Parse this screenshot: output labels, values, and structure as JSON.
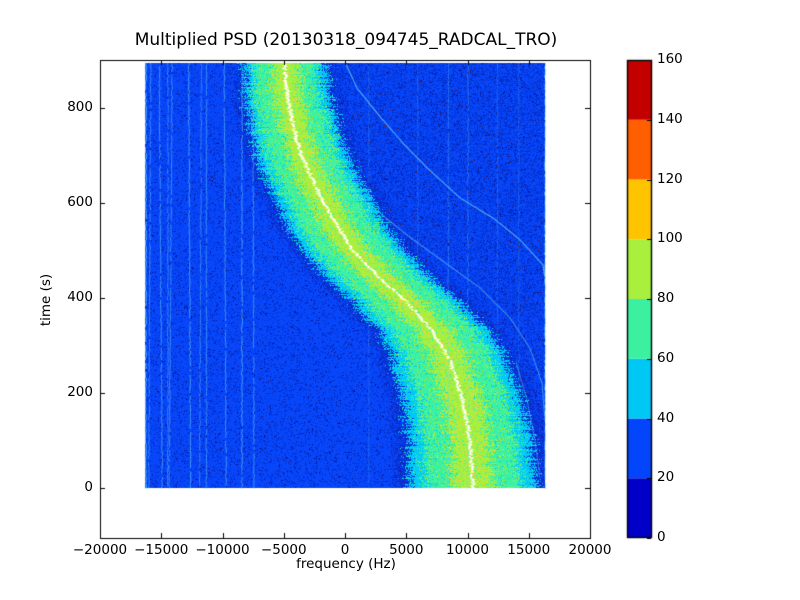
{
  "chart_data": {
    "type": "heatmap",
    "title": "Multiplied PSD (20130318_094745_RADCAL_TRO)",
    "xlabel": "frequency (Hz)",
    "ylabel": "time (s)",
    "xlim": [
      -20000,
      20000
    ],
    "ylim": [
      -105,
      900
    ],
    "grid": false,
    "xticks": {
      "values": [
        -20000,
        -15000,
        -10000,
        -5000,
        0,
        5000,
        10000,
        15000,
        20000
      ],
      "labels": [
        "−20000",
        "−15000",
        "−10000",
        "−5000",
        "0",
        "5000",
        "10000",
        "15000",
        "20000"
      ]
    },
    "yticks": {
      "values": [
        0,
        200,
        400,
        600,
        800
      ],
      "labels": [
        "0",
        "200",
        "400",
        "600",
        "800"
      ]
    },
    "colorbar": {
      "position": "right",
      "ticks": [
        0,
        20,
        40,
        60,
        80,
        100,
        120,
        140,
        160
      ],
      "tick_labels": [
        "0",
        "20",
        "40",
        "60",
        "80",
        "100",
        "120",
        "140",
        "160"
      ],
      "bands": [
        {
          "from": 0,
          "to": 20,
          "color": "#0000c8"
        },
        {
          "from": 20,
          "to": 40,
          "color": "#0345fa"
        },
        {
          "from": 40,
          "to": 60,
          "color": "#00c8f5"
        },
        {
          "from": 60,
          "to": 80,
          "color": "#3cf0a2"
        },
        {
          "from": 80,
          "to": 100,
          "color": "#a8ef3e"
        },
        {
          "from": 100,
          "to": 120,
          "color": "#ffc400"
        },
        {
          "from": 120,
          "to": 140,
          "color": "#ff5f00"
        },
        {
          "from": 140,
          "to": 160,
          "color": "#c20000"
        }
      ]
    },
    "data_extent": {
      "freq": [
        -16300,
        16300
      ],
      "time": [
        0,
        895
      ]
    },
    "doppler_track": [
      [
        0,
        10450
      ],
      [
        101,
        10200
      ],
      [
        185,
        9630
      ],
      [
        269,
        8570
      ],
      [
        332,
        7100
      ],
      [
        395,
        4900
      ],
      [
        437,
        3020
      ],
      [
        501,
        570
      ],
      [
        606,
        -1880
      ],
      [
        711,
        -3750
      ],
      [
        816,
        -4650
      ],
      [
        895,
        -5000
      ]
    ],
    "band_halfwidth_hz": {
      "at_top": 2550,
      "at_bottom": 4000
    },
    "band_zone_ratios": {
      "core_white": 0.05,
      "yellowgreen": 0.42,
      "green": 1.0,
      "cyan": 1.3,
      "dark_rim": 1.58
    },
    "echo_tracks": [
      {
        "alpha": 0.75,
        "points": [
          [
            890,
            100
          ],
          [
            840,
            1000
          ],
          [
            780,
            2900
          ],
          [
            725,
            4730
          ],
          [
            673,
            6700
          ],
          [
            610,
            9390
          ],
          [
            568,
            12080
          ],
          [
            522,
            14290
          ],
          [
            469,
            16160
          ],
          [
            445,
            16300
          ]
        ]
      },
      {
        "alpha": 0.5,
        "points": [
          [
            690,
            -2500
          ],
          [
            660,
            -900
          ],
          [
            637,
            0
          ],
          [
            595,
            2040
          ],
          [
            532,
            5060
          ],
          [
            477,
            8000
          ],
          [
            421,
            11020
          ],
          [
            358,
            13470
          ],
          [
            294,
            15100
          ],
          [
            221,
            16080
          ],
          [
            150,
            16300
          ]
        ]
      },
      {
        "alpha": 0.4,
        "points": [
          [
            265,
            13960
          ],
          [
            185,
            14860
          ],
          [
            101,
            15510
          ],
          [
            20,
            15920
          ]
        ]
      }
    ],
    "streaks": [
      {
        "f": -16300,
        "a": 0.8,
        "drift": 0
      },
      {
        "f": -15900,
        "a": 0.45,
        "drift": -2
      },
      {
        "f": -15200,
        "a": 0.5,
        "drift": 3
      },
      {
        "f": -14500,
        "a": 0.4,
        "drift": 0
      },
      {
        "f": -14150,
        "a": 0.45,
        "drift": -3
      },
      {
        "f": -12800,
        "a": 0.55,
        "drift": 2
      },
      {
        "f": -11750,
        "a": 0.4,
        "drift": -2
      },
      {
        "f": -11350,
        "a": 0.45,
        "drift": 0
      },
      {
        "f": -9900,
        "a": 0.5,
        "drift": 2
      },
      {
        "f": -8450,
        "a": 0.55,
        "drift": 0
      },
      {
        "f": -7550,
        "a": 0.5,
        "drift": 1
      },
      {
        "f": 1900,
        "a": 0.22,
        "drift": 0
      },
      {
        "f": 5900,
        "a": 0.22,
        "drift": 0
      },
      {
        "f": 8400,
        "a": 0.3,
        "drift": 0
      },
      {
        "f": 10000,
        "a": 0.3,
        "drift": 0
      },
      {
        "f": 12400,
        "a": 0.22,
        "drift": 0
      },
      {
        "f": 14150,
        "a": 0.2,
        "drift": 0
      },
      {
        "f": 16300,
        "a": 0.7,
        "drift": 0
      }
    ],
    "noise_colors": {
      "background": "#0846fa",
      "dark_speckle": "#0231cf",
      "deep_speckle": "#0a1490",
      "maroon_speckle": "#5a0830",
      "dark_rim": "#0a2bc4",
      "gold_speckle": "#ffd24a",
      "streak": "#6edcfc",
      "center_line": "#ffffff",
      "center_halo": "#e8ff70"
    }
  }
}
